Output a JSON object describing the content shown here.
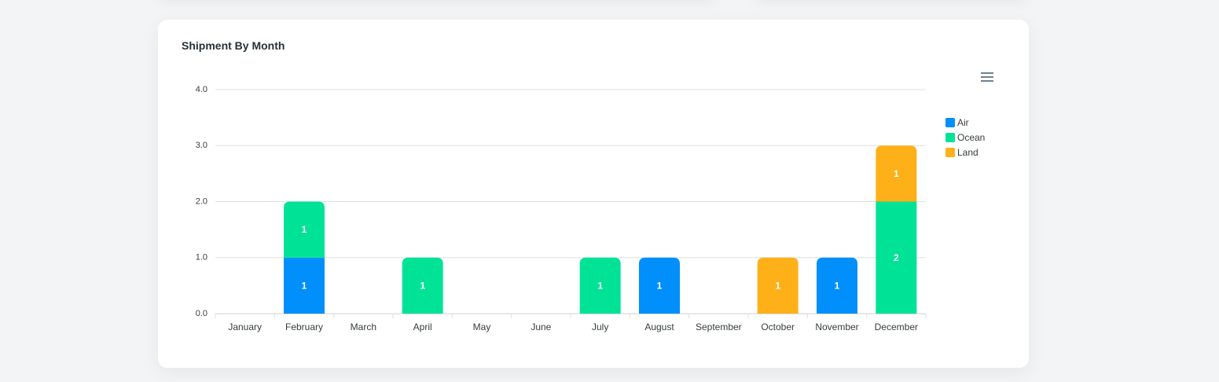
{
  "card": {
    "title": "Shipment By Month",
    "menu_icon": "hamburger-menu-icon"
  },
  "chart_data": {
    "type": "bar",
    "stacked": true,
    "title": "Shipment By Month",
    "categories": [
      "January",
      "February",
      "March",
      "April",
      "May",
      "June",
      "July",
      "August",
      "September",
      "October",
      "November",
      "December"
    ],
    "series": [
      {
        "name": "Air",
        "color": "#008ffb",
        "values": [
          0,
          1,
          0,
          0,
          0,
          0,
          0,
          1,
          0,
          0,
          1,
          0
        ]
      },
      {
        "name": "Ocean",
        "color": "#00e396",
        "values": [
          0,
          1,
          0,
          1,
          0,
          0,
          1,
          0,
          0,
          0,
          0,
          2
        ]
      },
      {
        "name": "Land",
        "color": "#feb019",
        "values": [
          0,
          0,
          0,
          0,
          0,
          0,
          0,
          0,
          0,
          1,
          0,
          1
        ]
      }
    ],
    "ylim": [
      0,
      4
    ],
    "yticks": [
      "0.0",
      "1.0",
      "2.0",
      "3.0",
      "4.0"
    ],
    "grid": true,
    "legend_position": "right",
    "data_labels": true
  }
}
